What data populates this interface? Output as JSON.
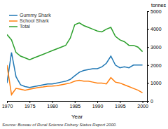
{
  "chart_data": {
    "type": "line",
    "xlabel": "Year",
    "ylabel": "tonnes",
    "source": "Source: Bureau of Rural Science Fishery Status Report 2000.",
    "x": [
      1970,
      1971,
      1972,
      1973,
      1974,
      1975,
      1976,
      1977,
      1978,
      1979,
      1980,
      1981,
      1982,
      1983,
      1984,
      1985,
      1986,
      1987,
      1988,
      1989,
      1990,
      1991,
      1992,
      1993,
      1994,
      1995,
      1996,
      1997,
      1998,
      1999,
      2000
    ],
    "series": [
      {
        "name": "Gummy Shark",
        "values": [
          1000,
          2700,
          1350,
          900,
          800,
          750,
          800,
          850,
          900,
          950,
          950,
          1000,
          1050,
          1100,
          1200,
          1400,
          1600,
          1700,
          1750,
          1800,
          1800,
          1900,
          2100,
          2500,
          2000,
          1850,
          1900,
          1850,
          2000,
          2000,
          2000
        ]
      },
      {
        "name": "School Shark",
        "values": [
          2000,
          350,
          700,
          650,
          600,
          650,
          700,
          750,
          780,
          820,
          830,
          850,
          900,
          950,
          1000,
          1100,
          1150,
          1100,
          1100,
          1050,
          1000,
          1000,
          950,
          1300,
          1050,
          1000,
          900,
          800,
          700,
          600,
          450
        ]
      },
      {
        "name": "Total",
        "values": [
          3700,
          3400,
          2700,
          2500,
          2400,
          2300,
          2400,
          2500,
          2600,
          2700,
          2800,
          2900,
          3000,
          3100,
          3500,
          4250,
          4350,
          4200,
          4100,
          4000,
          3900,
          3850,
          4000,
          4100,
          3600,
          3400,
          3300,
          3100,
          3100,
          3000,
          2750
        ]
      }
    ],
    "xlim": [
      1970,
      2001
    ],
    "xticks": [
      1970,
      1975,
      1980,
      1985,
      1990,
      1995,
      2000
    ],
    "ylim": [
      0,
      5000
    ],
    "yticks": [
      0,
      1000,
      2000,
      3000,
      4000,
      5000
    ],
    "legend": "upper left"
  }
}
